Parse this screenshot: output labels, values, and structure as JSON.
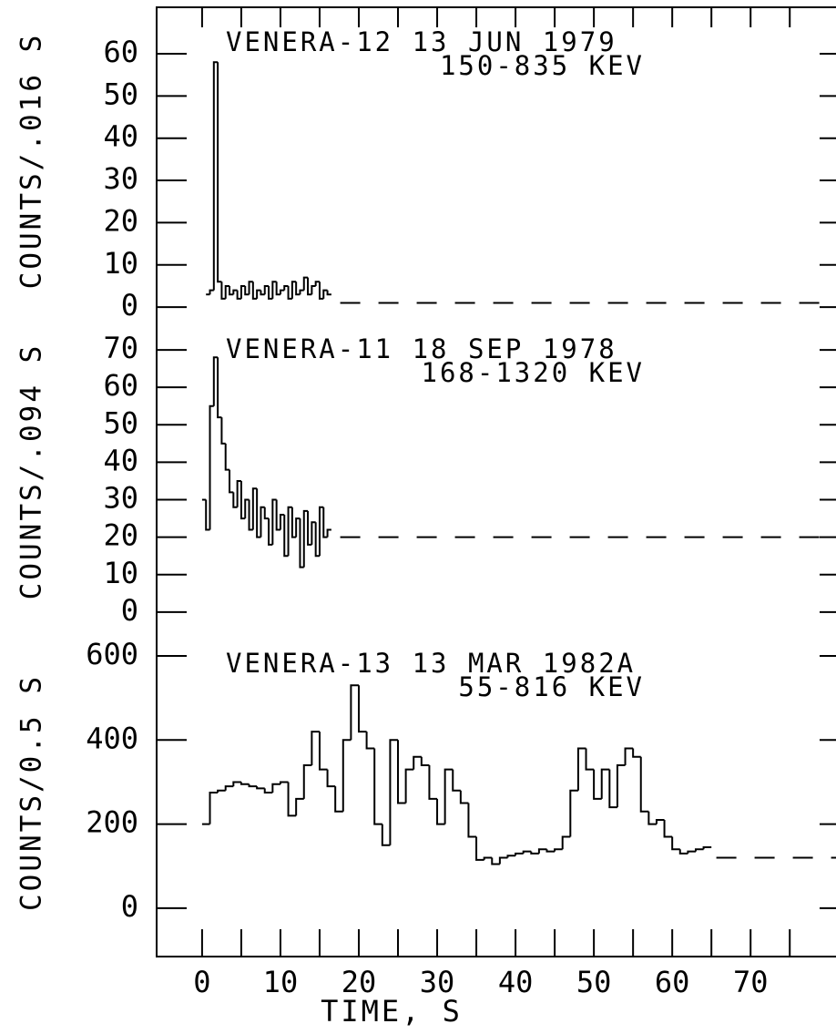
{
  "chart_data": {
    "type": "step",
    "xlabel": "TIME, S",
    "xlim": [
      -5.8,
      80.9
    ],
    "xticks": [
      0,
      10,
      20,
      30,
      40,
      50,
      60,
      70
    ],
    "xticks_minor": [
      5,
      15,
      25,
      35,
      45,
      55,
      65,
      75
    ],
    "color": "#000000",
    "panels": [
      {
        "title": "VENERA-12 13 JUN 1979",
        "subtitle": "150-835 KEV",
        "ylabel": "COUNTS/.016 S",
        "ylim": [
          -1.7,
          71
        ],
        "yticks": [
          0,
          10,
          20,
          30,
          40,
          50,
          60
        ],
        "background": 1,
        "x": [
          0.5,
          1,
          1.5,
          2,
          2.5,
          3,
          3.5,
          4,
          4.5,
          5,
          5.5,
          6,
          6.5,
          7,
          7.5,
          8,
          8.5,
          9,
          9.5,
          10,
          10.5,
          11,
          11.5,
          12,
          12.5,
          13,
          13.5,
          14,
          14.5,
          15,
          15.5,
          16
        ],
        "values": [
          3,
          4,
          58,
          6,
          2,
          5,
          3,
          4,
          2,
          5,
          3,
          6,
          2,
          4,
          3,
          5,
          2,
          6,
          3,
          4,
          5,
          2,
          6,
          3,
          4,
          7,
          3,
          5,
          6,
          2,
          4,
          3
        ]
      },
      {
        "title": "VENERA-11 18 SEP 1978",
        "subtitle": "168-1320 KEV",
        "ylabel": "COUNTS/.094 S",
        "ylim": [
          -4.4,
          79.5
        ],
        "yticks": [
          0,
          10,
          20,
          30,
          40,
          50,
          60,
          70
        ],
        "background": 20,
        "x": [
          0,
          0.5,
          1,
          1.5,
          2,
          2.5,
          3,
          3.5,
          4,
          4.5,
          5,
          5.5,
          6,
          6.5,
          7,
          7.5,
          8,
          8.5,
          9,
          9.5,
          10,
          10.5,
          11,
          11.5,
          12,
          12.5,
          13,
          13.5,
          14,
          14.5,
          15,
          15.5,
          16
        ],
        "values": [
          30,
          22,
          55,
          68,
          52,
          45,
          38,
          32,
          28,
          35,
          25,
          30,
          22,
          33,
          20,
          28,
          25,
          18,
          30,
          22,
          26,
          15,
          28,
          20,
          25,
          12,
          27,
          18,
          24,
          15,
          28,
          20,
          22
        ]
      },
      {
        "title": "VENERA-13 13 MAR 1982A",
        "subtitle": "55-816 KEV",
        "ylabel": "COUNTS/0.5 S",
        "ylim": [
          -115,
          665
        ],
        "yticks": [
          0,
          200,
          400,
          600
        ],
        "background": 120,
        "x": [
          0,
          1,
          2,
          3,
          4,
          5,
          6,
          7,
          8,
          9,
          10,
          11,
          12,
          13,
          14,
          15,
          16,
          17,
          18,
          19,
          20,
          21,
          22,
          23,
          24,
          25,
          26,
          27,
          28,
          29,
          30,
          31,
          32,
          33,
          34,
          35,
          36,
          37,
          38,
          39,
          40,
          41,
          42,
          43,
          44,
          45,
          46,
          47,
          48,
          49,
          50,
          51,
          52,
          53,
          54,
          55,
          56,
          57,
          58,
          59,
          60,
          61,
          62,
          63,
          64
        ],
        "values": [
          200,
          275,
          280,
          290,
          300,
          295,
          290,
          285,
          275,
          295,
          300,
          220,
          260,
          340,
          420,
          330,
          290,
          230,
          400,
          530,
          420,
          380,
          200,
          150,
          400,
          250,
          330,
          360,
          340,
          260,
          200,
          330,
          280,
          250,
          170,
          115,
          120,
          105,
          120,
          125,
          130,
          135,
          130,
          140,
          135,
          140,
          170,
          280,
          380,
          330,
          260,
          330,
          240,
          340,
          380,
          360,
          230,
          200,
          210,
          170,
          140,
          130,
          135,
          140,
          145
        ]
      }
    ]
  }
}
